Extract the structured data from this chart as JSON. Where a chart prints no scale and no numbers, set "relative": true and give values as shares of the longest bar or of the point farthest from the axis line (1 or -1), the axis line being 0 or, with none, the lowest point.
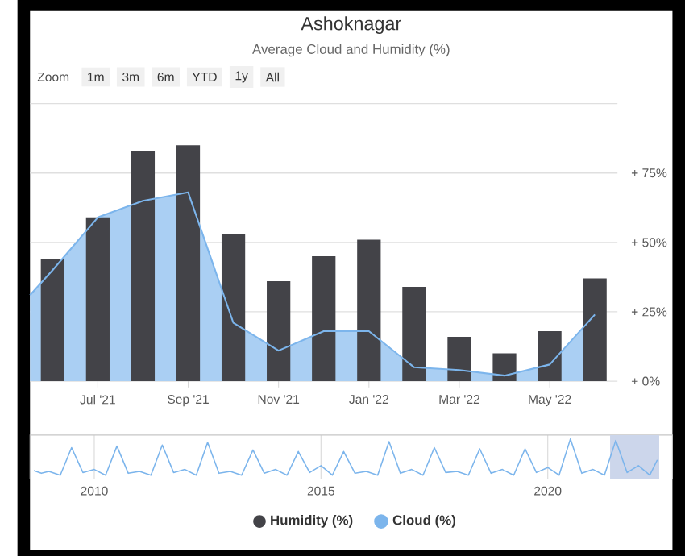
{
  "chart_data": [
    {
      "type": "bar",
      "title": "Ashoknagar",
      "subtitle": "Average Cloud and Humidity (%)",
      "annotations": [
        "Zoom",
        "1m",
        "3m",
        "6m",
        "YTD",
        "1y",
        "All"
      ],
      "x": [
        "2021-06",
        "2021-07",
        "2021-08",
        "2021-09",
        "2021-10",
        "2021-11",
        "2021-12",
        "2022-01",
        "2022-02",
        "2022-03",
        "2022-04",
        "2022-05",
        "2022-06"
      ],
      "series": [
        {
          "name": "Cloud (%)",
          "type": "area",
          "color": "#7cb5ec",
          "x": [
            "2021-05-16",
            "2021-06",
            "2021-07",
            "2021-08",
            "2021-09",
            "2021-10",
            "2021-11",
            "2021-12",
            "2022-01",
            "2022-02",
            "2022-03",
            "2022-04",
            "2022-05",
            "2022-06"
          ],
          "values": [
            31,
            40,
            59,
            65,
            68,
            21,
            11,
            18,
            18,
            5,
            4,
            2,
            6,
            24
          ]
        },
        {
          "name": "Humidity (%)",
          "type": "bar",
          "color": "#434348",
          "values": [
            44,
            59,
            83,
            85,
            53,
            36,
            45,
            51,
            34,
            16,
            10,
            18,
            37
          ]
        }
      ],
      "xlim": [
        "2021-05-16",
        "2022-06-16"
      ],
      "xticks": [
        {
          "value": "2021-07",
          "label": "Jul '21"
        },
        {
          "value": "2021-09",
          "label": "Sep '21"
        },
        {
          "value": "2021-11",
          "label": "Nov '21"
        },
        {
          "value": "2022-01",
          "label": "Jan '22"
        },
        {
          "value": "2022-03",
          "label": "Mar '22"
        },
        {
          "value": "2022-05",
          "label": "May '22"
        }
      ],
      "ylim": [
        0,
        100
      ],
      "yticks": [
        {
          "value": 0,
          "label": "+ 0%"
        },
        {
          "value": 25,
          "label": "+ 25%"
        },
        {
          "value": 50,
          "label": "+ 50%"
        },
        {
          "value": 75,
          "label": "+ 75%"
        }
      ],
      "grid": "y",
      "legend": "bottom"
    },
    {
      "type": "line",
      "relative": true,
      "x": [
        "2008-09",
        "2008-11",
        "2009-01",
        "2009-04",
        "2009-07",
        "2009-10",
        "2010-01",
        "2010-04",
        "2010-07",
        "2010-10",
        "2011-01",
        "2011-04",
        "2011-07",
        "2011-10",
        "2012-01",
        "2012-04",
        "2012-07",
        "2012-10",
        "2013-01",
        "2013-04",
        "2013-07",
        "2013-10",
        "2014-01",
        "2014-04",
        "2014-07",
        "2014-10",
        "2015-01",
        "2015-04",
        "2015-07",
        "2015-10",
        "2016-01",
        "2016-04",
        "2016-07",
        "2016-10",
        "2017-01",
        "2017-04",
        "2017-07",
        "2017-10",
        "2018-01",
        "2018-04",
        "2018-07",
        "2018-10",
        "2019-01",
        "2019-04",
        "2019-07",
        "2019-10",
        "2020-01",
        "2020-04",
        "2020-07",
        "2020-10",
        "2021-01",
        "2021-04",
        "2021-07",
        "2021-10",
        "2022-01",
        "2022-04",
        "2022-06"
      ],
      "series": [
        {
          "color": "#7cb5ec",
          "values": [
            0.17,
            0.1,
            0.15,
            0.05,
            0.77,
            0.12,
            0.2,
            0.05,
            0.81,
            0.1,
            0.15,
            0.05,
            0.84,
            0.12,
            0.2,
            0.05,
            0.91,
            0.1,
            0.15,
            0.05,
            0.71,
            0.1,
            0.2,
            0.05,
            0.67,
            0.12,
            0.3,
            0.05,
            0.67,
            0.1,
            0.15,
            0.05,
            0.93,
            0.1,
            0.2,
            0.05,
            0.77,
            0.12,
            0.15,
            0.05,
            0.74,
            0.1,
            0.2,
            0.05,
            0.74,
            0.12,
            0.25,
            0.05,
            1.0,
            0.1,
            0.2,
            0.05,
            0.96,
            0.12,
            0.3,
            0.05,
            0.45
          ]
        }
      ],
      "xlim": [
        "2008-08",
        "2022-10"
      ],
      "xticks": [
        "2010",
        "2015",
        "2020"
      ],
      "grid": "x",
      "bands": [
        {
          "axis": "x",
          "from": "2021-05-16",
          "to": "2022-06-16",
          "color": "#ccd6eb"
        }
      ]
    }
  ]
}
